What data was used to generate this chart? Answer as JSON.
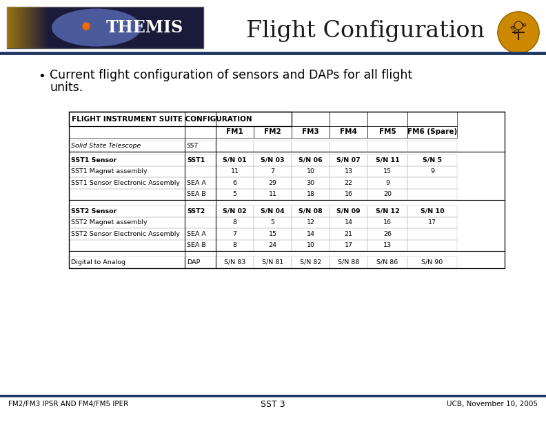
{
  "title": "Flight Configuration",
  "background_color": "#ffffff",
  "header_line_color": "#1f3864",
  "bullet_text_line1": "Current flight configuration of sensors and DAPs for all flight",
  "bullet_text_line2": "units.",
  "footer_left": "FM2/FM3 IPSR AND FM4/FM5 IPER",
  "footer_center": "SST 3",
  "footer_right": "UCB, November 10, 2005",
  "table_title": "FLIGHT INSTRUMENT SUITE CONFIGURATION",
  "col_headers": [
    "",
    "",
    "FM1",
    "FM2",
    "FM3",
    "FM4",
    "FM5",
    "FM6 (Spare)"
  ],
  "table_rows": [
    [
      "Solid State Telescope",
      "SST",
      "",
      "",
      "",
      "",
      "",
      ""
    ],
    [
      "SST1 Sensor",
      "SST1",
      "S/N 01",
      "S/N 03",
      "S/N 06",
      "S/N 07",
      "S/N 11",
      "S/N 5"
    ],
    [
      "SST1 Magnet assembly",
      "",
      "11",
      "7",
      "10",
      "13",
      "15",
      "9"
    ],
    [
      "SST1 Sensor Electronic Assembly",
      "SEA A",
      "6",
      "29",
      "30",
      "22",
      "9",
      ""
    ],
    [
      "",
      "SEA B",
      "5",
      "11",
      "18",
      "16",
      "20",
      ""
    ],
    [
      "SST2 Sensor",
      "SST2",
      "S/N 02",
      "S/N 04",
      "S/N 08",
      "S/N 09",
      "S/N 12",
      "S/N 10"
    ],
    [
      "SST2 Magnet assembly",
      "",
      "8",
      "5",
      "12",
      "14",
      "16",
      "17"
    ],
    [
      "SST2 Sensor Electronic Assembly",
      "SEA A",
      "7",
      "15",
      "14",
      "21",
      "26",
      ""
    ],
    [
      "",
      "SEA B",
      "8",
      "24",
      "10",
      "17",
      "13",
      ""
    ],
    [
      "Digital to Analog",
      "DAP",
      "S/N 83",
      "S/N 81",
      "S/N 82",
      "S/N 88",
      "S/N 86",
      "S/N 90"
    ]
  ],
  "row_bold": [
    false,
    true,
    false,
    false,
    false,
    true,
    false,
    false,
    false,
    false
  ],
  "row_italic": [
    true,
    false,
    false,
    false,
    false,
    false,
    false,
    false,
    false,
    false
  ],
  "themis_bg": "#3a4a7a",
  "athena_bg": "#cc8800",
  "title_color": "#1a1a1a",
  "table_outer_lw": 0.9,
  "table_inner_lw": 0.4,
  "table_sep_lw": 0.8
}
